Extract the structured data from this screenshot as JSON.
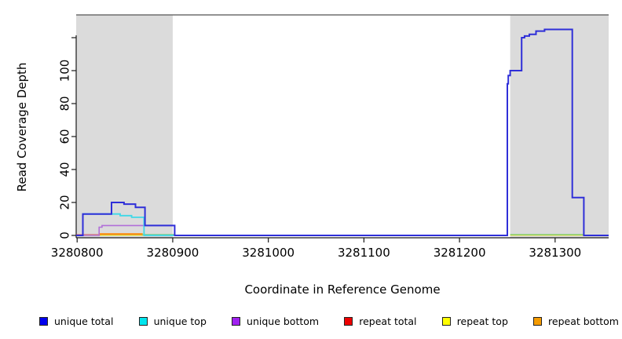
{
  "labels": {
    "x_axis": "Coordinate in Reference Genome",
    "y_axis": "Read Coverage Depth"
  },
  "chart_data": {
    "type": "line",
    "step": true,
    "title": "",
    "xlabel": "Coordinate in Reference Genome",
    "ylabel": "Read Coverage Depth",
    "xlim": [
      3280799,
      3281356
    ],
    "ylim": [
      0,
      134
    ],
    "grid": false,
    "x_ticks": [
      {
        "value": 3280800,
        "label": "3280800"
      },
      {
        "value": 3280900,
        "label": "3280900"
      },
      {
        "value": 3281000,
        "label": "3281000"
      },
      {
        "value": 3281100,
        "label": "3281100"
      },
      {
        "value": 3281200,
        "label": "3281200"
      },
      {
        "value": 3281300,
        "label": "3281300"
      }
    ],
    "y_ticks": [
      {
        "value": 0,
        "label": "0"
      },
      {
        "value": 20,
        "label": "20"
      },
      {
        "value": 40,
        "label": "40"
      },
      {
        "value": 60,
        "label": "60"
      },
      {
        "value": 80,
        "label": "80"
      },
      {
        "value": 100,
        "label": "100"
      },
      {
        "value": 120,
        "label": ""
      }
    ],
    "shaded_regions": [
      {
        "x0": 3280799,
        "x1": 3280900,
        "color": "#DBDBDB"
      },
      {
        "x0": 3281253,
        "x1": 3281356,
        "color": "#DBDBDB"
      }
    ],
    "top_border_color": "#6e6e6e",
    "axis_color": "#1a1a1a",
    "series": [
      {
        "name": "repeat total",
        "color": "#D84050",
        "width": 1.3,
        "segments": [
          [
            [
              3280799,
              0.4
            ],
            [
              3280870,
              0.4
            ]
          ]
        ]
      },
      {
        "name": "repeat top",
        "color": "#F0E800",
        "width": 1.2,
        "segments": [
          [
            [
              3280799,
              0.15
            ],
            [
              3280902,
              0.15
            ]
          ],
          [
            [
              3281253,
              0.15
            ],
            [
              3281330,
              0.15
            ]
          ]
        ]
      },
      {
        "name": "repeat bottom",
        "color": "#FF9912",
        "width": 1.5,
        "segments": [
          [
            [
              3280824,
              0
            ],
            [
              3280824,
              1
            ],
            [
              3280868,
              1
            ],
            [
              3280868,
              0
            ]
          ]
        ]
      },
      {
        "name": "baseline green",
        "color": "#7CCB7C",
        "width": 1.4,
        "segments": [
          [
            [
              3280868,
              0.5
            ],
            [
              3280902,
              0.5
            ]
          ],
          [
            [
              3281253,
              0.5
            ],
            [
              3281330,
              0.5
            ]
          ]
        ]
      },
      {
        "name": "unique bottom",
        "color": "#B16FD9",
        "width": 1.6,
        "segments": [
          [
            [
              3280799,
              0
            ],
            [
              3280823,
              0
            ],
            [
              3280823,
              5
            ],
            [
              3280826,
              5
            ],
            [
              3280826,
              6
            ],
            [
              3280902,
              6
            ],
            [
              3280902,
              0
            ]
          ]
        ]
      },
      {
        "name": "unique top",
        "color": "#3ED8E8",
        "width": 1.8,
        "segments": [
          [
            [
              3280799,
              0
            ],
            [
              3280806,
              0
            ],
            [
              3280806,
              13
            ],
            [
              3280845,
              13
            ],
            [
              3280845,
              12
            ],
            [
              3280857,
              12
            ],
            [
              3280857,
              11
            ],
            [
              3280870,
              11
            ],
            [
              3280870,
              0
            ],
            [
              3280901,
              0
            ]
          ]
        ]
      },
      {
        "name": "unique total",
        "color": "#2F2FD8",
        "width": 2,
        "segments": [
          [
            [
              3280799,
              0
            ],
            [
              3280806,
              0
            ],
            [
              3280806,
              13
            ],
            [
              3280836,
              13
            ],
            [
              3280836,
              20
            ],
            [
              3280849,
              20
            ],
            [
              3280849,
              19
            ],
            [
              3280861,
              19
            ],
            [
              3280861,
              17
            ],
            [
              3280871,
              17
            ],
            [
              3280871,
              6
            ],
            [
              3280902,
              6
            ],
            [
              3280902,
              0
            ],
            [
              3281250,
              0
            ],
            [
              3281250,
              92
            ],
            [
              3281251,
              92
            ],
            [
              3281251,
              97
            ],
            [
              3281253,
              97
            ],
            [
              3281253,
              100
            ],
            [
              3281265,
              100
            ],
            [
              3281265,
              120
            ],
            [
              3281268,
              120
            ],
            [
              3281268,
              121
            ],
            [
              3281273,
              121
            ],
            [
              3281273,
              122
            ],
            [
              3281280,
              122
            ],
            [
              3281280,
              124
            ],
            [
              3281289,
              124
            ],
            [
              3281289,
              125
            ],
            [
              3281318,
              125
            ],
            [
              3281318,
              23
            ],
            [
              3281330,
              23
            ],
            [
              3281330,
              0
            ],
            [
              3281356,
              0
            ]
          ]
        ]
      }
    ]
  },
  "legend": {
    "items": [
      {
        "label": "unique total",
        "color": "#0000EE"
      },
      {
        "label": "unique top",
        "color": "#00E5EE"
      },
      {
        "label": "unique bottom",
        "color": "#A020F0"
      },
      {
        "label": "repeat total",
        "color": "#EE0000"
      },
      {
        "label": "repeat top",
        "color": "#FFFF00"
      },
      {
        "label": "repeat bottom",
        "color": "#F59B00"
      }
    ]
  }
}
